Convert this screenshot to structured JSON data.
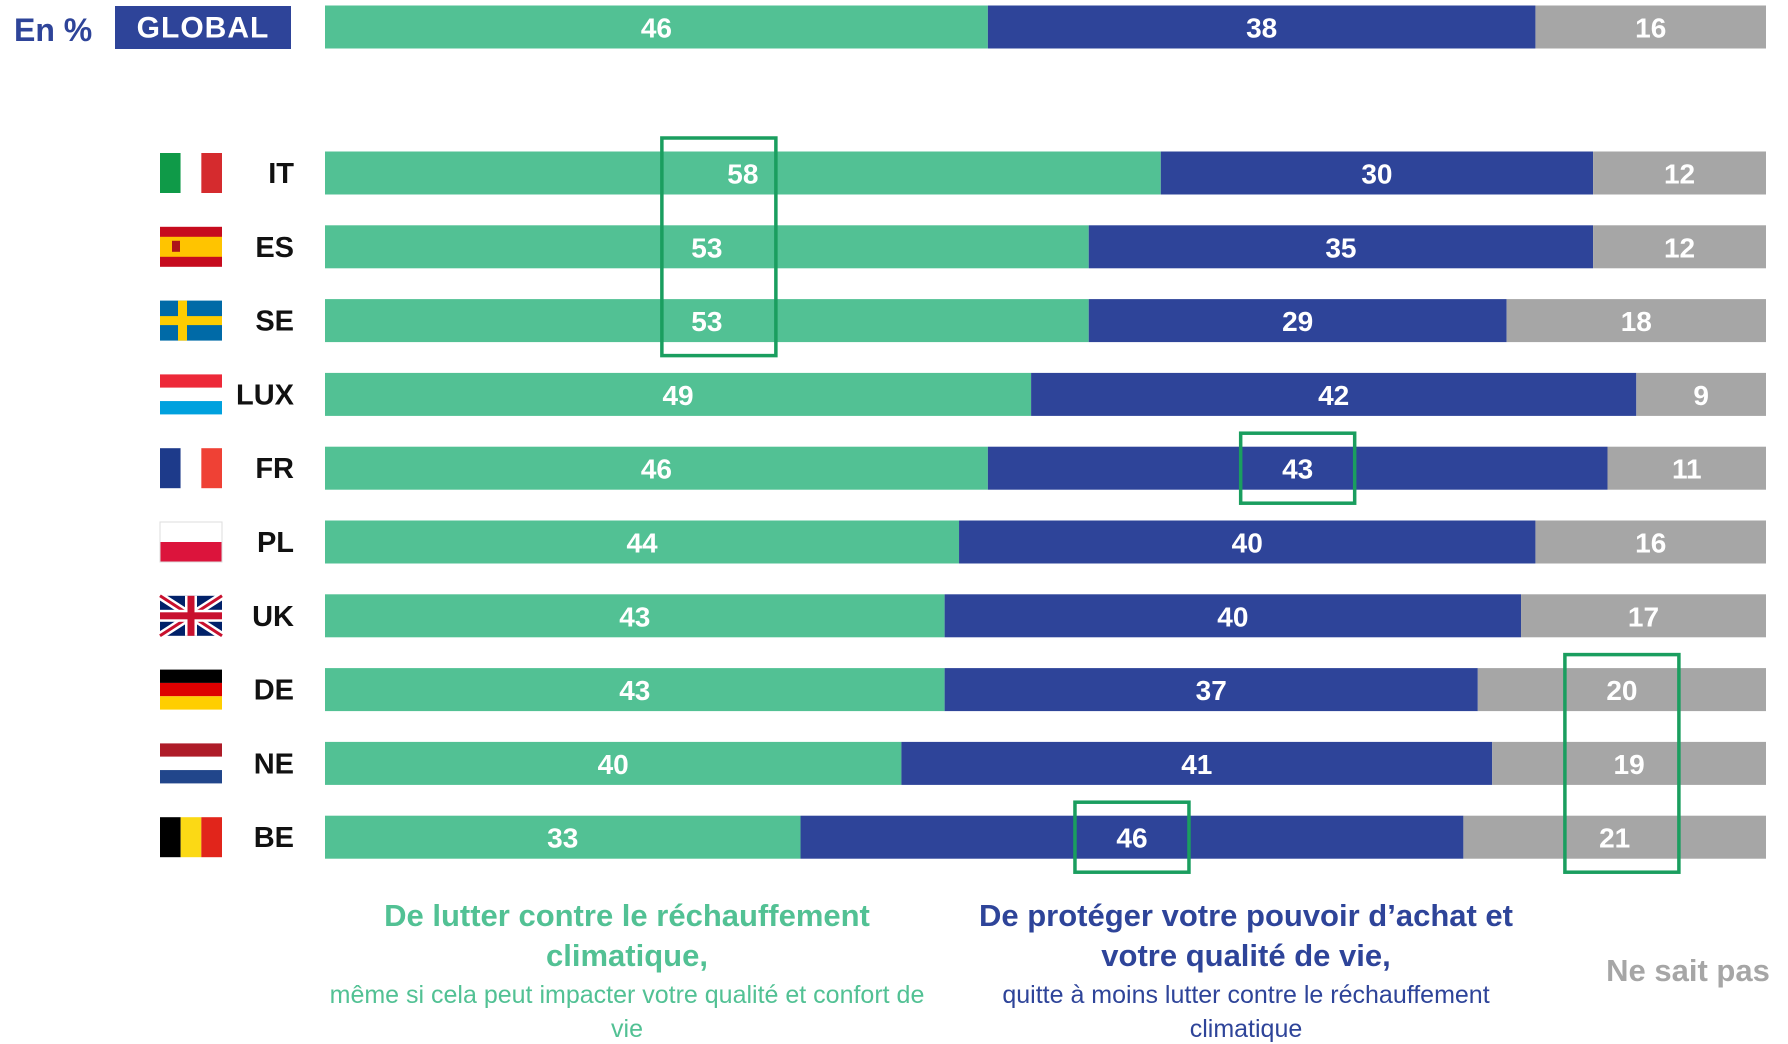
{
  "chart_data": {
    "type": "stacked_bar_h",
    "unit_label": "En %",
    "categories": [
      "GLOBAL",
      "IT",
      "ES",
      "SE",
      "LUX",
      "FR",
      "PL",
      "UK",
      "DE",
      "NE",
      "BE"
    ],
    "series": [
      {
        "name": "De lutter contre le réchauffement climatique,",
        "description": "même si cela peut impacter votre qualité et confort de vie",
        "color": "#52c194",
        "values": [
          46,
          58,
          53,
          53,
          49,
          46,
          44,
          43,
          43,
          40,
          33
        ]
      },
      {
        "name": "De protéger votre pouvoir d’achat et votre qualité de vie,",
        "description": "quitte à moins lutter contre le réchauffement climatique",
        "color": "#2e4499",
        "values": [
          38,
          30,
          35,
          29,
          42,
          43,
          40,
          40,
          37,
          41,
          46
        ]
      },
      {
        "name": "Ne sait pas",
        "color": "#a6a6a6",
        "values": [
          16,
          12,
          12,
          18,
          9,
          11,
          16,
          17,
          20,
          19,
          21
        ]
      }
    ],
    "xlim": [
      0,
      100
    ],
    "highlights": [
      {
        "series": 0,
        "categories": [
          1,
          2,
          3
        ]
      },
      {
        "series": 1,
        "categories": [
          5
        ]
      },
      {
        "series": 1,
        "categories": [
          10
        ]
      },
      {
        "series": 2,
        "categories": [
          8,
          9,
          10
        ]
      }
    ],
    "highlight_color": "#1a9e5f"
  }
}
